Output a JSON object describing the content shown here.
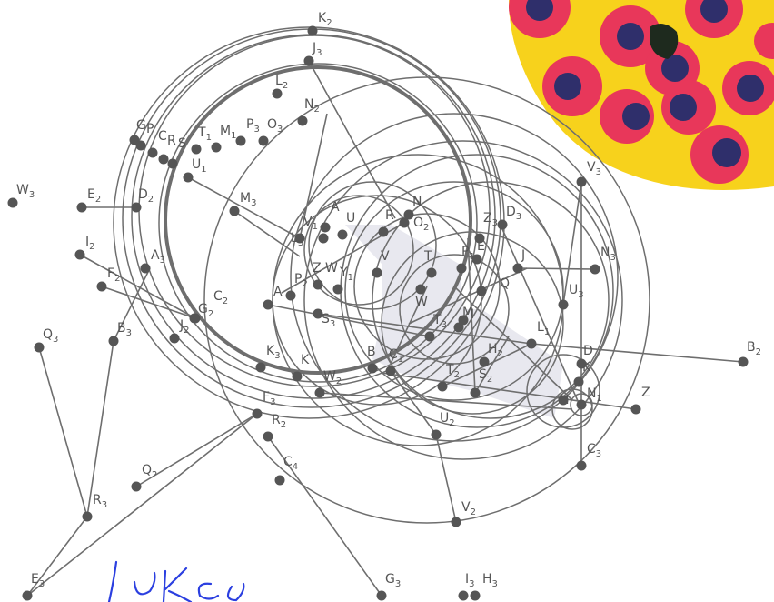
{
  "points": [
    {
      "id": "K2",
      "l": "K",
      "s": "2"
    },
    {
      "id": "J3",
      "l": "J",
      "s": "3"
    },
    {
      "id": "L2",
      "l": "L",
      "s": "2"
    },
    {
      "id": "N2",
      "l": "N",
      "s": "2"
    },
    {
      "id": "G",
      "l": "G",
      "s": ""
    },
    {
      "id": "P",
      "l": "P",
      "s": ""
    },
    {
      "id": "C",
      "l": "C",
      "s": ""
    },
    {
      "id": "R",
      "l": "R",
      "s": ""
    },
    {
      "id": "S",
      "l": "S",
      "s": ""
    },
    {
      "id": "T1",
      "l": "T",
      "s": "1"
    },
    {
      "id": "M1",
      "l": "M",
      "s": "1"
    },
    {
      "id": "P3",
      "l": "P",
      "s": "3"
    },
    {
      "id": "O3",
      "l": "O",
      "s": "3"
    },
    {
      "id": "U1",
      "l": "U",
      "s": "1"
    },
    {
      "id": "W3",
      "l": "W",
      "s": "3"
    },
    {
      "id": "E2",
      "l": "E",
      "s": "2"
    },
    {
      "id": "D2",
      "l": "D",
      "s": "2"
    },
    {
      "id": "M3",
      "l": "M",
      "s": "3"
    },
    {
      "id": "I2",
      "l": "I",
      "s": "2"
    },
    {
      "id": "A3",
      "l": "A",
      "s": "3"
    },
    {
      "id": "F2",
      "l": "F",
      "s": "2"
    },
    {
      "id": "C2",
      "l": "C",
      "s": "2"
    },
    {
      "id": "G2",
      "l": "G",
      "s": "2"
    },
    {
      "id": "J2",
      "l": "J",
      "s": "2"
    },
    {
      "id": "Q3",
      "l": "Q",
      "s": "3"
    },
    {
      "id": "B3",
      "l": "B",
      "s": "3"
    },
    {
      "id": "A",
      "l": "A",
      "s": ""
    },
    {
      "id": "A1",
      "l": "A",
      "s": ""
    },
    {
      "id": "V1",
      "l": "V",
      "s": "1"
    },
    {
      "id": "U",
      "l": "U",
      "s": ""
    },
    {
      "id": "R1",
      "l": "R",
      "s": ""
    },
    {
      "id": "N",
      "l": "N",
      "s": ""
    },
    {
      "id": "O2",
      "l": "O",
      "s": "2"
    },
    {
      "id": "L3",
      "l": "L",
      "s": "3"
    },
    {
      "id": "V",
      "l": "V",
      "s": ""
    },
    {
      "id": "Z3",
      "l": "Z",
      "s": "3"
    },
    {
      "id": "D3",
      "l": "D",
      "s": "3"
    },
    {
      "id": "P2",
      "l": "P",
      "s": "2"
    },
    {
      "id": "ZW",
      "l": "Z W",
      "s": ""
    },
    {
      "id": "Y1",
      "l": "Y",
      "s": "1"
    },
    {
      "id": "S3",
      "l": "S",
      "s": "3"
    },
    {
      "id": "T",
      "l": "T",
      "s": ""
    },
    {
      "id": "J",
      "l": "J",
      "s": ""
    },
    {
      "id": "V3",
      "l": "V",
      "s": "3"
    },
    {
      "id": "N3",
      "l": "N",
      "s": "3"
    },
    {
      "id": "U3",
      "l": "U",
      "s": "3"
    },
    {
      "id": "W",
      "l": "W",
      "s": ""
    },
    {
      "id": "T3",
      "l": "T",
      "s": "3"
    },
    {
      "id": "M",
      "l": "M",
      "s": ""
    },
    {
      "id": "L1",
      "l": "L",
      "s": "1"
    },
    {
      "id": "K3",
      "l": "K",
      "s": "3"
    },
    {
      "id": "K",
      "l": "K",
      "s": ""
    },
    {
      "id": "B",
      "l": "B",
      "s": ""
    },
    {
      "id": "C1",
      "l": "C",
      "s": "1"
    },
    {
      "id": "W2",
      "l": "W",
      "s": "2"
    },
    {
      "id": "H2",
      "l": "H",
      "s": "2"
    },
    {
      "id": "T2",
      "l": "T",
      "s": "2"
    },
    {
      "id": "S2",
      "l": "S",
      "s": "2"
    },
    {
      "id": "D1",
      "l": "D",
      "s": ""
    },
    {
      "id": "K1",
      "l": "K",
      "s": ""
    },
    {
      "id": "H",
      "l": "H",
      "s": ""
    },
    {
      "id": "N1",
      "l": "N",
      "s": "1"
    },
    {
      "id": "Z",
      "l": "Z",
      "s": ""
    },
    {
      "id": "B2",
      "l": "B",
      "s": "2"
    },
    {
      "id": "F3",
      "l": "F",
      "s": "3"
    },
    {
      "id": "R2",
      "l": "R",
      "s": "2"
    },
    {
      "id": "U2",
      "l": "U",
      "s": "2"
    },
    {
      "id": "C3",
      "l": "C",
      "s": "3"
    },
    {
      "id": "C4",
      "l": "C",
      "s": "4"
    },
    {
      "id": "Q2",
      "l": "Q",
      "s": "2"
    },
    {
      "id": "R3",
      "l": "R",
      "s": "3"
    },
    {
      "id": "V2",
      "l": "V",
      "s": "2"
    },
    {
      "id": "E3",
      "l": "E",
      "s": "3"
    },
    {
      "id": "G3",
      "l": "G",
      "s": "3"
    },
    {
      "id": "I3",
      "l": "I",
      "s": "3"
    },
    {
      "id": "H3",
      "l": "H",
      "s": "3"
    },
    {
      "id": "P1",
      "l": "P",
      "s": "1"
    },
    {
      "id": "Q",
      "l": "Q",
      "s": ""
    },
    {
      "id": "I1",
      "l": "I",
      "s": ""
    },
    {
      "id": "E1",
      "l": "E",
      "s": ""
    }
  ],
  "colors": {
    "ink": "#555555",
    "line": "#6e6e6e",
    "shade": "#dcdce6",
    "yellow": "#f7d21c",
    "red": "#e8375a",
    "navy": "#2f2f6b",
    "pen": "#2b3fe0"
  },
  "handwriting": "Lukas"
}
